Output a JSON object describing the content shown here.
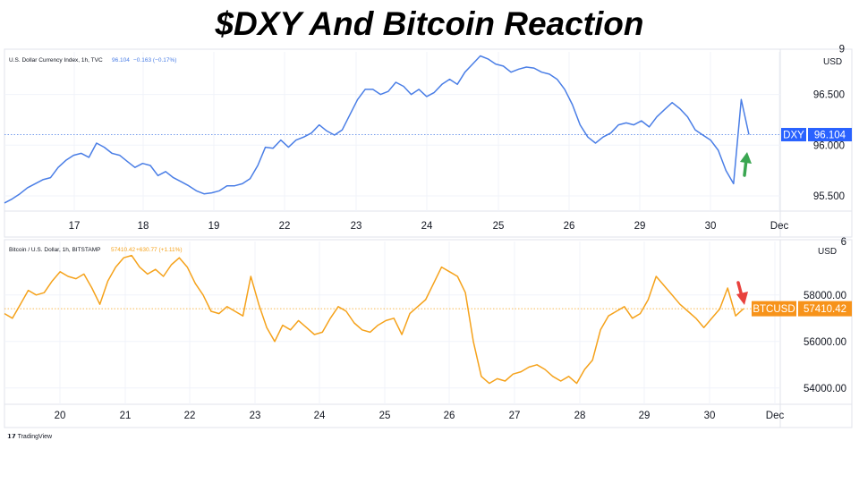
{
  "title": "$DXY And Bitcoin Reaction",
  "branding": {
    "text": "TradingView",
    "icon": "tradingview-logo-icon"
  },
  "colors": {
    "dxy_line": "#4a7ee6",
    "btc_line": "#f5a21b",
    "up_arrow": "#3aa651",
    "down_arrow": "#e8413d",
    "grid": "#f0f3fa",
    "border": "#e0e3eb"
  },
  "chart_data": [
    {
      "type": "line",
      "legend": {
        "symbol": "U.S. Dollar Currency Index, 1h, TVC",
        "last": "96.104",
        "change": "−0.163 (−0.17%)"
      },
      "currency_label": "USD",
      "x_ticks": [
        "17",
        "18",
        "19",
        "22",
        "23",
        "24",
        "25",
        "26",
        "29",
        "30",
        "Dec"
      ],
      "y_ticks": [
        "9",
        "96.500",
        "96.000",
        "95.500"
      ],
      "ylim": [
        95.35,
        96.92
      ],
      "last_value": 96.104,
      "last_label": "DXY",
      "last_tag": "96.104",
      "series": [
        {
          "values": [
            95.43,
            95.47,
            95.52,
            95.58,
            95.62,
            95.66,
            95.68,
            95.78,
            95.85,
            95.9,
            95.92,
            95.88,
            96.02,
            95.98,
            95.92,
            95.9,
            95.84,
            95.78,
            95.82,
            95.8,
            95.7,
            95.74,
            95.68,
            95.64,
            95.6,
            95.55,
            95.52,
            95.53,
            95.55,
            95.6,
            95.6,
            95.62,
            95.67,
            95.8,
            95.98,
            95.97,
            96.05,
            95.98,
            96.05,
            96.08,
            96.12,
            96.2,
            96.14,
            96.1,
            96.15,
            96.3,
            96.45,
            96.55,
            96.55,
            96.5,
            96.53,
            96.62,
            96.58,
            96.5,
            96.55,
            96.48,
            96.52,
            96.6,
            96.65,
            96.6,
            96.72,
            96.8,
            96.88,
            96.85,
            96.8,
            96.78,
            96.72,
            96.75,
            96.77,
            96.76,
            96.72,
            96.7,
            96.65,
            96.55,
            96.4,
            96.2,
            96.08,
            96.02,
            96.08,
            96.12,
            96.2,
            96.22,
            96.2,
            96.24,
            96.18,
            96.28,
            96.35,
            96.42,
            96.36,
            96.28,
            96.15,
            96.1,
            96.05,
            95.95,
            95.75,
            95.62,
            96.45,
            96.104
          ]
        }
      ]
    },
    {
      "type": "line",
      "legend": {
        "symbol": "Bitcoin / U.S. Dollar, 1h, BITSTAMP",
        "last": "57410.42",
        "change": "+630.77 (+1.11%)"
      },
      "currency_label": "USD",
      "x_ticks": [
        "20",
        "21",
        "22",
        "23",
        "24",
        "25",
        "26",
        "27",
        "28",
        "29",
        "30",
        "Dec"
      ],
      "y_ticks": [
        "6",
        "58000.00",
        "56000.00",
        "54000.00"
      ],
      "ylim": [
        53300,
        60300
      ],
      "last_value": 57410.42,
      "last_label": "BTCUSD",
      "last_tag": "57410.42",
      "series": [
        {
          "values": [
            57200,
            57000,
            57600,
            58200,
            58000,
            58100,
            58600,
            59000,
            58800,
            58700,
            58900,
            58300,
            57600,
            58600,
            59200,
            59600,
            59700,
            59200,
            58900,
            59100,
            58800,
            59300,
            59600,
            59200,
            58500,
            58000,
            57300,
            57200,
            57500,
            57300,
            57100,
            58800,
            57600,
            56600,
            56000,
            56700,
            56500,
            56900,
            56600,
            56300,
            56400,
            57000,
            57500,
            57300,
            56800,
            56500,
            56400,
            56700,
            56900,
            57000,
            56300,
            57200,
            57500,
            57800,
            58500,
            59200,
            59000,
            58800,
            58100,
            56000,
            54500,
            54200,
            54400,
            54300,
            54600,
            54700,
            54900,
            55000,
            54800,
            54500,
            54300,
            54500,
            54200,
            54800,
            55200,
            56500,
            57100,
            57300,
            57500,
            57000,
            57200,
            57800,
            58800,
            58400,
            58000,
            57600,
            57300,
            57000,
            56600,
            57000,
            57400,
            58300,
            57100,
            57410.42
          ]
        }
      ]
    }
  ]
}
